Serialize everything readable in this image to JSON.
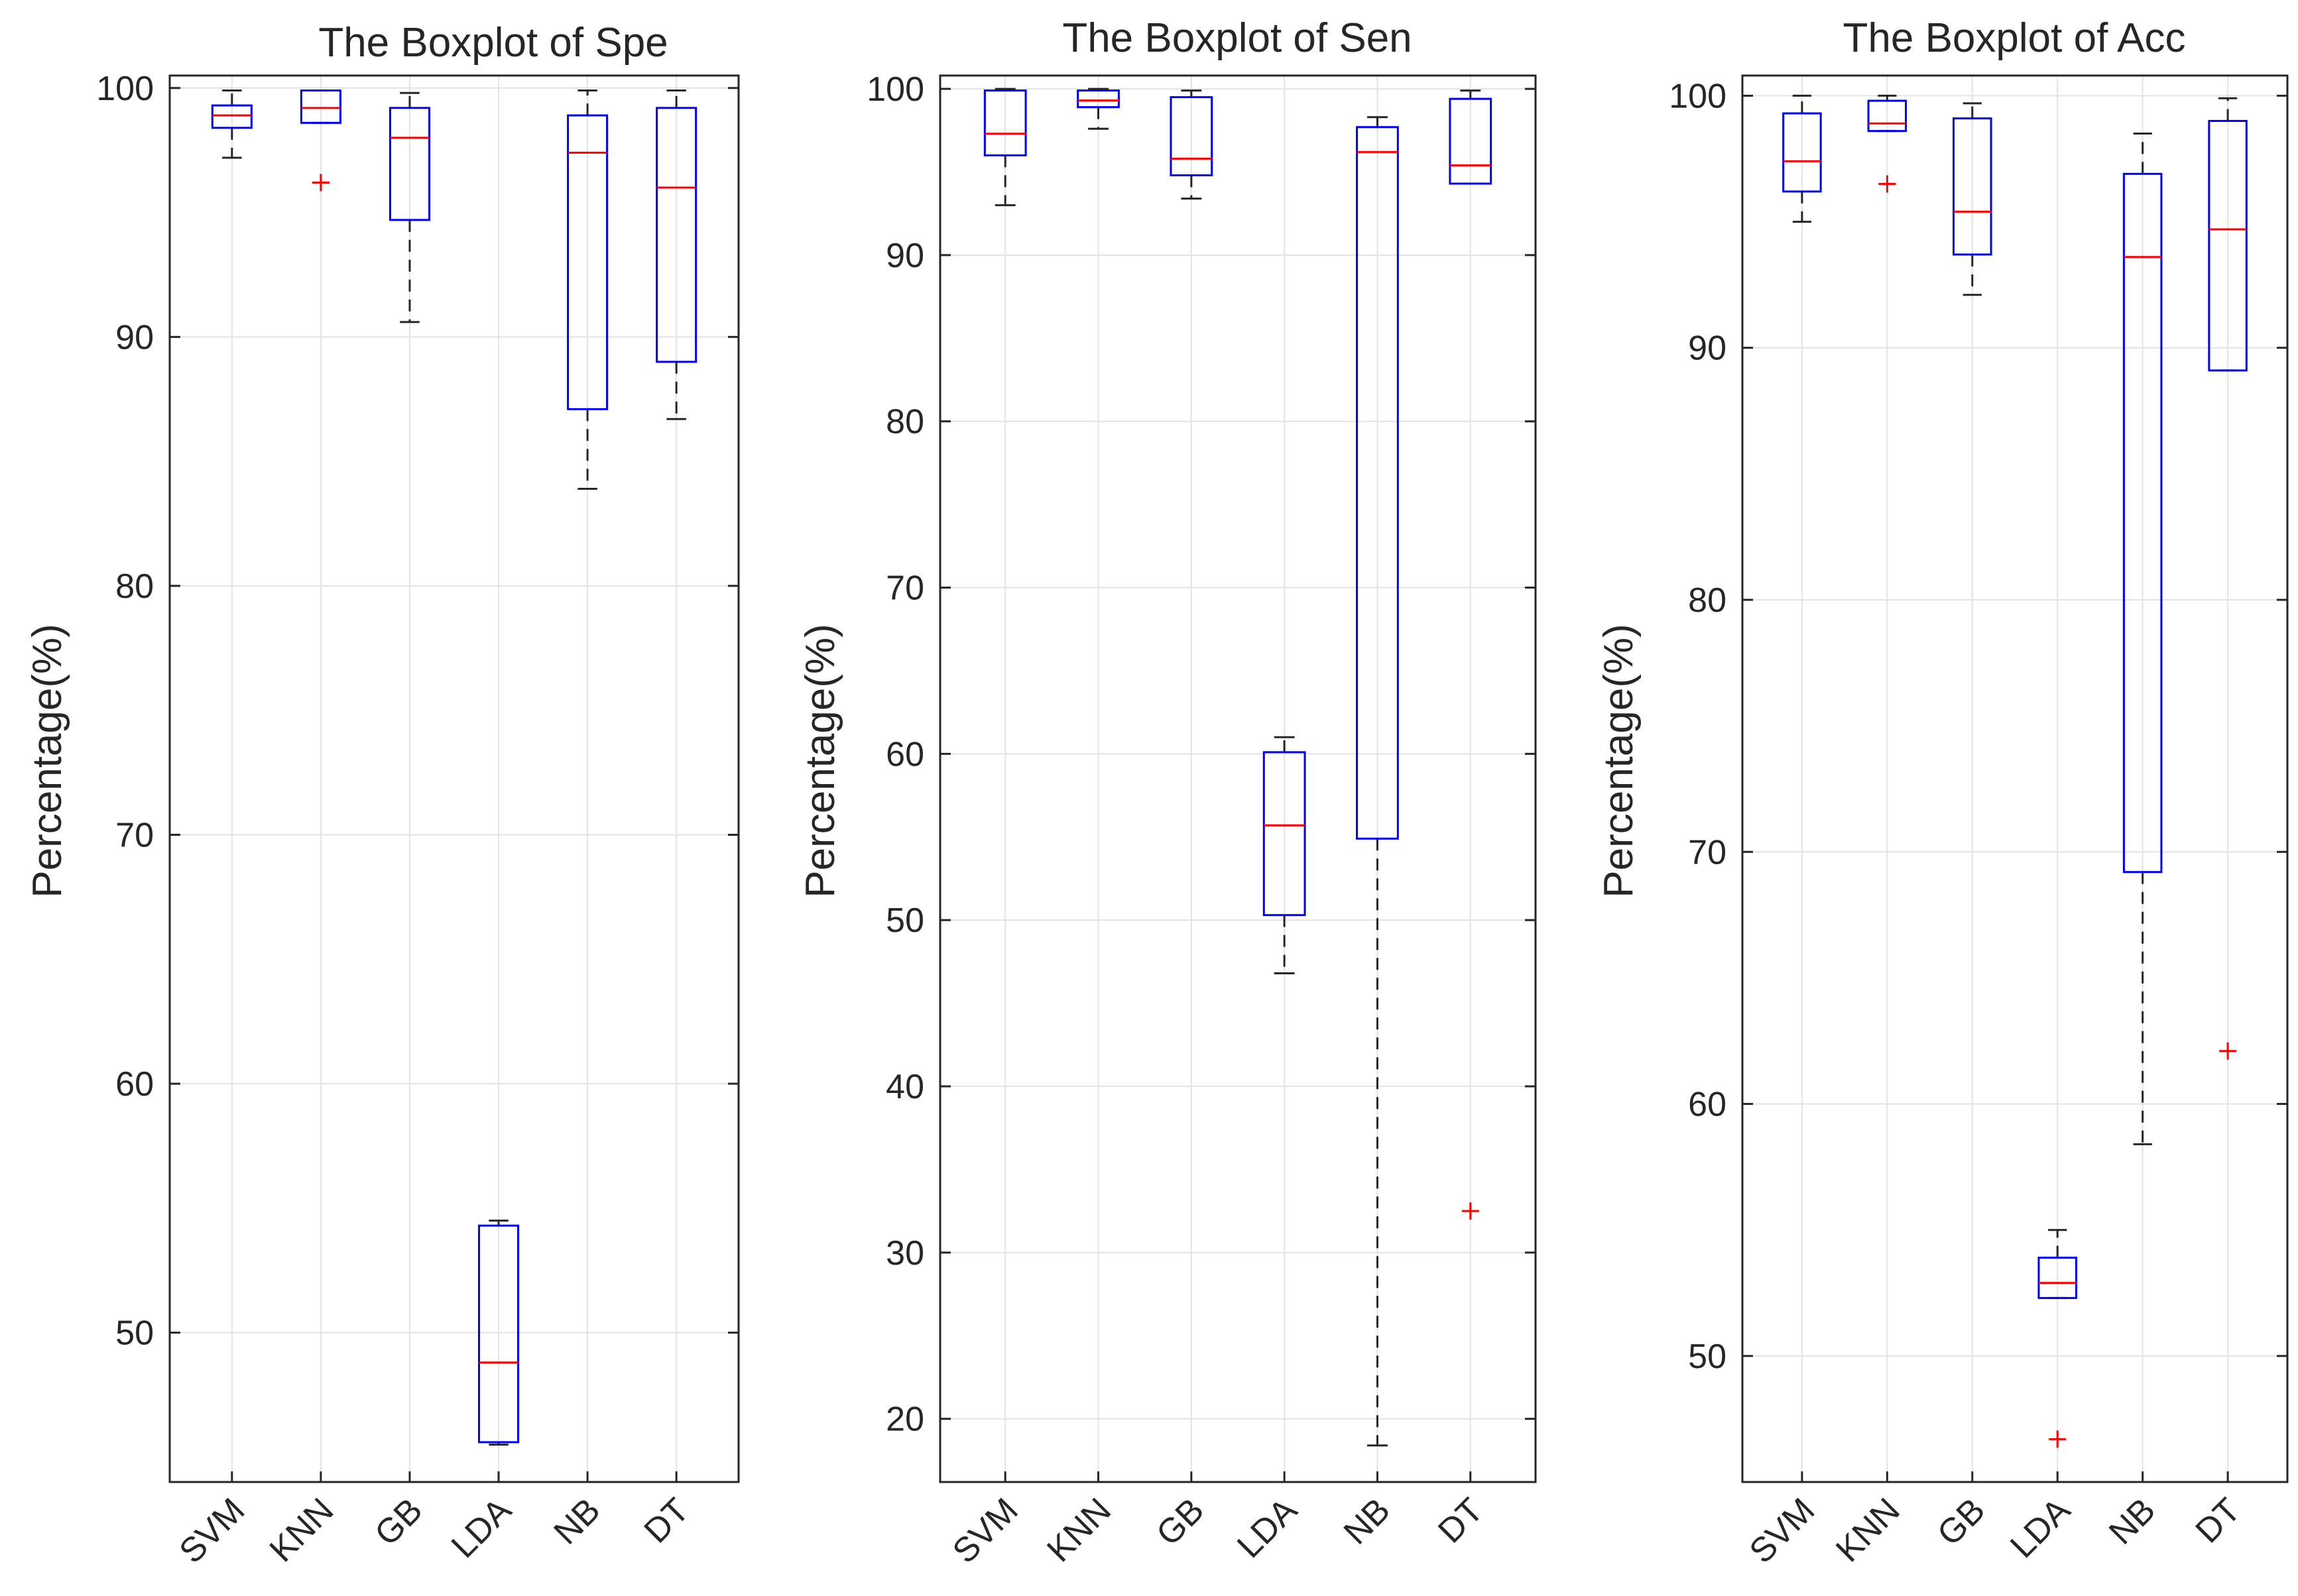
{
  "chart_data": [
    {
      "type": "boxplot",
      "title": "The Boxplot of Spe",
      "ylabel": "Percentage(%)",
      "xlabel": "",
      "ylim": [
        44,
        100.5
      ],
      "yticks": [
        50,
        60,
        70,
        80,
        90,
        100
      ],
      "grid": true,
      "categories": [
        "SVM",
        "KNN",
        "GB",
        "LDA",
        "NB",
        "DT"
      ],
      "series": [
        {
          "name": "SVM",
          "lower_whisker": 97.2,
          "q1": 98.4,
          "median": 98.9,
          "q3": 99.3,
          "upper_whisker": 99.9,
          "outliers": []
        },
        {
          "name": "KNN",
          "lower_whisker": 98.6,
          "q1": 98.6,
          "median": 99.2,
          "q3": 99.9,
          "upper_whisker": 99.9,
          "outliers": [
            96.2
          ]
        },
        {
          "name": "GB",
          "lower_whisker": 90.6,
          "q1": 94.7,
          "median": 98.0,
          "q3": 99.2,
          "upper_whisker": 99.8,
          "outliers": []
        },
        {
          "name": "LDA",
          "lower_whisker": 45.5,
          "q1": 45.6,
          "median": 48.8,
          "q3": 54.3,
          "upper_whisker": 54.5,
          "outliers": []
        },
        {
          "name": "NB",
          "lower_whisker": 83.9,
          "q1": 87.1,
          "median": 97.4,
          "q3": 98.9,
          "upper_whisker": 99.9,
          "outliers": []
        },
        {
          "name": "DT",
          "lower_whisker": 86.7,
          "q1": 89.0,
          "median": 96.0,
          "q3": 99.2,
          "upper_whisker": 99.9,
          "outliers": []
        }
      ]
    },
    {
      "type": "boxplot",
      "title": "The Boxplot of Sen",
      "ylabel": "Percentage(%)",
      "xlabel": "",
      "ylim": [
        16.2,
        100.8
      ],
      "yticks": [
        20,
        30,
        40,
        50,
        60,
        70,
        80,
        90,
        100
      ],
      "grid": true,
      "categories": [
        "SVM",
        "KNN",
        "GB",
        "LDA",
        "NB",
        "DT"
      ],
      "series": [
        {
          "name": "SVM",
          "lower_whisker": 93.0,
          "q1": 96.0,
          "median": 97.3,
          "q3": 99.9,
          "upper_whisker": 100.0,
          "outliers": []
        },
        {
          "name": "KNN",
          "lower_whisker": 97.6,
          "q1": 98.9,
          "median": 99.3,
          "q3": 99.9,
          "upper_whisker": 100.0,
          "outliers": []
        },
        {
          "name": "GB",
          "lower_whisker": 93.4,
          "q1": 94.8,
          "median": 95.8,
          "q3": 99.5,
          "upper_whisker": 99.9,
          "outliers": []
        },
        {
          "name": "LDA",
          "lower_whisker": 46.8,
          "q1": 50.3,
          "median": 55.7,
          "q3": 60.1,
          "upper_whisker": 61.0,
          "outliers": []
        },
        {
          "name": "NB",
          "lower_whisker": 18.4,
          "q1": 54.9,
          "median": 96.2,
          "q3": 97.7,
          "upper_whisker": 98.3,
          "outliers": []
        },
        {
          "name": "DT",
          "lower_whisker": 94.3,
          "q1": 94.3,
          "median": 95.4,
          "q3": 99.4,
          "upper_whisker": 99.9,
          "outliers": [
            32.5
          ]
        }
      ]
    },
    {
      "type": "boxplot",
      "title": "The Boxplot of Acc",
      "ylabel": "Percentage(%)",
      "xlabel": "",
      "ylim": [
        45,
        100.8
      ],
      "yticks": [
        50,
        60,
        70,
        80,
        90,
        100
      ],
      "grid": true,
      "categories": [
        "SVM",
        "KNN",
        "GB",
        "LDA",
        "NB",
        "DT"
      ],
      "series": [
        {
          "name": "SVM",
          "lower_whisker": 95.0,
          "q1": 96.2,
          "median": 97.4,
          "q3": 99.3,
          "upper_whisker": 100.0,
          "outliers": []
        },
        {
          "name": "KNN",
          "lower_whisker": 98.6,
          "q1": 98.6,
          "median": 98.9,
          "q3": 99.8,
          "upper_whisker": 100.0,
          "outliers": [
            96.5
          ]
        },
        {
          "name": "GB",
          "lower_whisker": 92.1,
          "q1": 93.7,
          "median": 95.4,
          "q3": 99.1,
          "upper_whisker": 99.7,
          "outliers": []
        },
        {
          "name": "LDA",
          "lower_whisker": 52.3,
          "q1": 52.3,
          "median": 52.9,
          "q3": 53.9,
          "upper_whisker": 55.0,
          "outliers": [
            46.7
          ]
        },
        {
          "name": "NB",
          "lower_whisker": 58.4,
          "q1": 69.2,
          "median": 93.6,
          "q3": 96.9,
          "upper_whisker": 98.5,
          "outliers": []
        },
        {
          "name": "DT",
          "lower_whisker": 89.1,
          "q1": 89.1,
          "median": 94.7,
          "q3": 99.0,
          "upper_whisker": 99.9,
          "outliers": [
            62.1
          ]
        }
      ]
    }
  ]
}
